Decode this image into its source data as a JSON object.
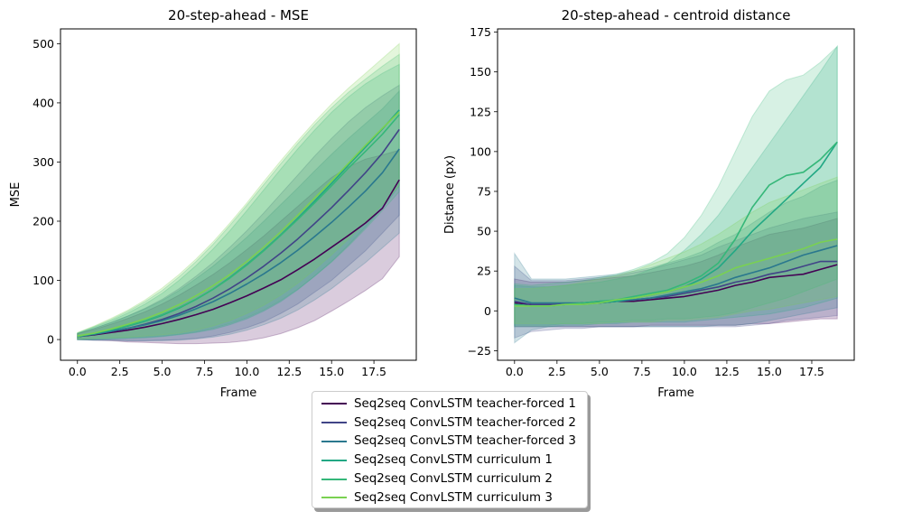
{
  "chart_data": [
    {
      "type": "line",
      "title": "20-step-ahead - MSE",
      "xlabel": "Frame",
      "ylabel": "MSE",
      "xlim": [
        -1,
        20
      ],
      "ylim": [
        -35,
        525
      ],
      "xticks": [
        0,
        2.5,
        5,
        7.5,
        10,
        12.5,
        15,
        17.5
      ],
      "xtick_labels": [
        "0.0",
        "2.5",
        "5.0",
        "7.5",
        "10.0",
        "12.5",
        "15.0",
        "17.5"
      ],
      "yticks": [
        0,
        100,
        200,
        300,
        400,
        500
      ],
      "ytick_labels": [
        "0",
        "100",
        "200",
        "300",
        "400",
        "500"
      ],
      "x": [
        0,
        1,
        2,
        3,
        4,
        5,
        6,
        7,
        8,
        9,
        10,
        11,
        12,
        13,
        14,
        15,
        16,
        17,
        18,
        19
      ],
      "series": [
        {
          "name": "Seq2seq ConvLSTM teacher-forced 1",
          "values": [
            5,
            8,
            12,
            16,
            21,
            27,
            34,
            42,
            51,
            62,
            74,
            87,
            101,
            118,
            136,
            156,
            176,
            197,
            222,
            270
          ],
          "lower": [
            0,
            -1,
            -2,
            -4,
            -5,
            -6,
            -7,
            -7,
            -6,
            -5,
            -2,
            3,
            10,
            20,
            32,
            48,
            65,
            83,
            103,
            140
          ],
          "upper": [
            10,
            17,
            26,
            36,
            47,
            60,
            75,
            92,
            110,
            130,
            152,
            175,
            200,
            225,
            250,
            274,
            292,
            305,
            312,
            320
          ]
        },
        {
          "name": "Seq2seq ConvLSTM teacher-forced 2",
          "values": [
            5,
            9,
            14,
            19,
            26,
            34,
            44,
            56,
            70,
            86,
            104,
            124,
            146,
            170,
            196,
            223,
            252,
            282,
            315,
            355
          ],
          "lower": [
            0,
            -1,
            -1,
            -2,
            -2,
            -1,
            0,
            2,
            6,
            12,
            20,
            30,
            44,
            60,
            80,
            100,
            125,
            150,
            180,
            210
          ],
          "upper": [
            10,
            19,
            29,
            40,
            53,
            68,
            86,
            107,
            130,
            156,
            184,
            214,
            246,
            278,
            310,
            340,
            368,
            392,
            412,
            430
          ]
        },
        {
          "name": "Seq2seq ConvLSTM teacher-forced 3",
          "values": [
            5,
            9,
            14,
            19,
            25,
            32,
            41,
            52,
            64,
            78,
            94,
            111,
            130,
            151,
            174,
            198,
            224,
            251,
            282,
            322
          ],
          "lower": [
            0,
            -1,
            -1,
            -2,
            -2,
            -2,
            -1,
            1,
            4,
            9,
            16,
            25,
            36,
            50,
            67,
            86,
            108,
            130,
            155,
            180
          ],
          "upper": [
            10,
            19,
            29,
            40,
            52,
            66,
            83,
            103,
            124,
            148,
            173,
            200,
            228,
            256,
            285,
            313,
            340,
            365,
            390,
            420
          ]
        },
        {
          "name": "Seq2seq ConvLSTM curriculum 1",
          "values": [
            5,
            10,
            16,
            23,
            31,
            41,
            53,
            68,
            85,
            105,
            127,
            151,
            177,
            205,
            234,
            264,
            295,
            325,
            356,
            388
          ],
          "lower": [
            0,
            0,
            1,
            2,
            3,
            5,
            8,
            12,
            17,
            25,
            35,
            48,
            64,
            84,
            107,
            132,
            160,
            190,
            222,
            260
          ],
          "upper": [
            11,
            21,
            32,
            45,
            60,
            78,
            100,
            125,
            153,
            184,
            218,
            253,
            288,
            322,
            354,
            384,
            410,
            432,
            450,
            465
          ]
        },
        {
          "name": "Seq2seq ConvLSTM curriculum 2",
          "values": [
            5,
            11,
            17,
            24,
            32,
            42,
            54,
            68,
            85,
            104,
            126,
            150,
            176,
            203,
            231,
            260,
            290,
            318,
            347,
            380
          ],
          "lower": [
            0,
            1,
            2,
            3,
            4,
            6,
            9,
            13,
            19,
            27,
            37,
            50,
            66,
            85,
            107,
            131,
            158,
            187,
            218,
            250
          ],
          "upper": [
            11,
            22,
            34,
            48,
            64,
            83,
            106,
            132,
            161,
            193,
            227,
            262,
            297,
            331,
            363,
            392,
            418,
            440,
            462,
            482
          ]
        },
        {
          "name": "Seq2seq ConvLSTM curriculum 3",
          "values": [
            6,
            11,
            18,
            26,
            35,
            46,
            59,
            74,
            91,
            110,
            132,
            156,
            182,
            210,
            239,
            268,
            298,
            328,
            357,
            385
          ],
          "lower": [
            1,
            2,
            3,
            4,
            6,
            8,
            11,
            16,
            23,
            32,
            44,
            58,
            75,
            95,
            118,
            143,
            170,
            198,
            228,
            260
          ],
          "upper": [
            12,
            23,
            36,
            50,
            67,
            87,
            110,
            136,
            165,
            197,
            231,
            267,
            302,
            336,
            368,
            398,
            425,
            450,
            475,
            500
          ]
        }
      ]
    },
    {
      "type": "line",
      "title": "20-step-ahead - centroid distance",
      "xlabel": "Frame",
      "ylabel": "Distance (px)",
      "xlim": [
        -1,
        20
      ],
      "ylim": [
        -31,
        177
      ],
      "xticks": [
        0,
        2.5,
        5,
        7.5,
        10,
        12.5,
        15,
        17.5
      ],
      "xtick_labels": [
        "0.0",
        "2.5",
        "5.0",
        "7.5",
        "10.0",
        "12.5",
        "15.0",
        "17.5"
      ],
      "yticks": [
        -25,
        0,
        25,
        50,
        75,
        100,
        125,
        150,
        175
      ],
      "ytick_labels": [
        "−25",
        "0",
        "25",
        "50",
        "75",
        "100",
        "125",
        "150",
        "175"
      ],
      "x": [
        0,
        1,
        2,
        3,
        4,
        5,
        6,
        7,
        8,
        9,
        10,
        11,
        12,
        13,
        14,
        15,
        16,
        17,
        18,
        19
      ],
      "series": [
        {
          "name": "Seq2seq ConvLSTM teacher-forced 1",
          "values": [
            5,
            4,
            4,
            4,
            5,
            5,
            6,
            6,
            7,
            8,
            9,
            11,
            13,
            16,
            18,
            21,
            22,
            23,
            26,
            29
          ],
          "lower": [
            -10,
            -10,
            -10,
            -10,
            -10,
            -10,
            -10,
            -10,
            -9,
            -9,
            -9,
            -9,
            -9,
            -9,
            -8,
            -8,
            -7,
            -6,
            -5,
            -5
          ],
          "upper": [
            20,
            18,
            18,
            18,
            19,
            20,
            21,
            22,
            24,
            26,
            28,
            31,
            35,
            40,
            44,
            48,
            50,
            52,
            55,
            58
          ]
        },
        {
          "name": "Seq2seq ConvLSTM teacher-forced 2",
          "values": [
            6,
            4,
            4,
            4,
            5,
            5,
            6,
            7,
            8,
            9,
            11,
            13,
            15,
            18,
            20,
            23,
            25,
            28,
            31,
            31
          ],
          "lower": [
            -17,
            -13,
            -12,
            -11,
            -11,
            -10,
            -10,
            -10,
            -10,
            -10,
            -10,
            -10,
            -10,
            -10,
            -9,
            -8,
            -6,
            -5,
            -4,
            -3
          ],
          "upper": [
            28,
            19,
            19,
            19,
            20,
            21,
            22,
            24,
            26,
            29,
            32,
            35,
            40,
            44,
            48,
            52,
            55,
            58,
            60,
            62
          ]
        },
        {
          "name": "Seq2seq ConvLSTM teacher-forced 3",
          "values": [
            8,
            5,
            5,
            5,
            5,
            6,
            6,
            7,
            8,
            10,
            12,
            14,
            17,
            21,
            24,
            27,
            31,
            35,
            38,
            41
          ],
          "lower": [
            -20,
            -12,
            -10,
            -10,
            -10,
            -10,
            -10,
            -10,
            -10,
            -10,
            -10,
            -10,
            -9,
            -9,
            -8,
            -6,
            -4,
            -2,
            0,
            2
          ],
          "upper": [
            36,
            20,
            20,
            20,
            21,
            22,
            23,
            25,
            27,
            30,
            33,
            37,
            43,
            48,
            55,
            62,
            68,
            72,
            78,
            82
          ]
        },
        {
          "name": "Seq2seq ConvLSTM curriculum 1",
          "values": [
            4,
            3,
            3,
            4,
            4,
            5,
            6,
            8,
            10,
            12,
            15,
            20,
            27,
            38,
            50,
            60,
            70,
            80,
            90,
            106
          ],
          "lower": [
            -10,
            -10,
            -10,
            -9,
            -9,
            -8,
            -8,
            -7,
            -7,
            -7,
            -7,
            -6,
            -5,
            -4,
            -3,
            -2,
            0,
            2,
            5,
            8
          ],
          "upper": [
            16,
            15,
            15,
            16,
            17,
            18,
            20,
            22,
            26,
            30,
            38,
            48,
            60,
            75,
            90,
            105,
            120,
            135,
            150,
            166
          ]
        },
        {
          "name": "Seq2seq ConvLSTM curriculum 2",
          "values": [
            4,
            3,
            3,
            4,
            5,
            6,
            7,
            9,
            11,
            13,
            17,
            22,
            30,
            45,
            65,
            79,
            85,
            87,
            95,
            106
          ],
          "lower": [
            -9,
            -9,
            -9,
            -8,
            -8,
            -7,
            -7,
            -6,
            -6,
            -5,
            -5,
            -4,
            -3,
            -1,
            2,
            5,
            8,
            12,
            16,
            20
          ],
          "upper": [
            17,
            16,
            17,
            18,
            19,
            21,
            23,
            26,
            30,
            36,
            46,
            60,
            78,
            100,
            122,
            138,
            145,
            148,
            156,
            166
          ]
        },
        {
          "name": "Seq2seq ConvLSTM curriculum 3",
          "values": [
            3,
            3,
            3,
            4,
            4,
            5,
            7,
            8,
            10,
            12,
            15,
            18,
            22,
            27,
            30,
            33,
            36,
            39,
            43,
            45
          ],
          "lower": [
            -8,
            -8,
            -8,
            -8,
            -8,
            -8,
            -7,
            -7,
            -7,
            -6,
            -6,
            -5,
            -4,
            -2,
            0,
            1,
            3,
            5,
            7,
            9
          ],
          "upper": [
            14,
            14,
            15,
            16,
            18,
            20,
            22,
            25,
            29,
            33,
            37,
            42,
            48,
            55,
            62,
            68,
            72,
            76,
            80,
            84
          ]
        }
      ]
    }
  ],
  "legend": {
    "items": [
      {
        "label": "Seq2seq ConvLSTM teacher-forced 1",
        "color": "#440154"
      },
      {
        "label": "Seq2seq ConvLSTM teacher-forced 2",
        "color": "#414487"
      },
      {
        "label": "Seq2seq ConvLSTM teacher-forced 3",
        "color": "#2a788e"
      },
      {
        "label": "Seq2seq ConvLSTM curriculum 1",
        "color": "#22a884"
      },
      {
        "label": "Seq2seq ConvLSTM curriculum 2",
        "color": "#35b779"
      },
      {
        "label": "Seq2seq ConvLSTM curriculum 3",
        "color": "#7ad151"
      }
    ]
  },
  "band_fills": [
    "#440154",
    "#414487",
    "#2a788e",
    "#22a884",
    "#35b779",
    "#7ad151"
  ]
}
